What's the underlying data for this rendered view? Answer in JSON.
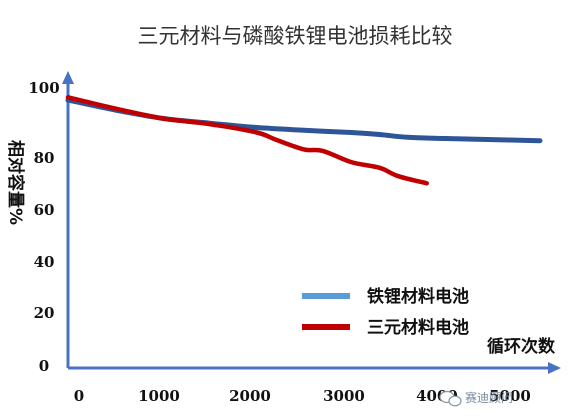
{
  "chart_data": {
    "type": "line",
    "title": "三元材料与磷酸铁锂电池损耗比较",
    "ylabel": "相对容量%",
    "xlabel": "循环次数",
    "xlim": [
      0,
      5000
    ],
    "ylim": [
      0,
      100
    ],
    "x_ticks": [
      "0",
      "1000",
      "2000",
      "3000",
      "4000",
      "5000"
    ],
    "y_ticks": [
      "0",
      "20",
      "40",
      "60",
      "80",
      "100"
    ],
    "legend_position": "lower-right",
    "grid": false,
    "series": [
      {
        "name": "铁锂材料电池",
        "color": "#2e5597",
        "legend_color": "#5b9bd5",
        "points": [
          [
            0,
            95
          ],
          [
            500,
            91.5
          ],
          [
            1000,
            88.5
          ],
          [
            1500,
            86.8
          ],
          [
            2000,
            85.3
          ],
          [
            2500,
            84.3
          ],
          [
            3000,
            83.5
          ],
          [
            3300,
            82.8
          ],
          [
            3600,
            81.8
          ],
          [
            4000,
            81.4
          ],
          [
            4500,
            81.0
          ],
          [
            5000,
            80.6
          ]
        ]
      },
      {
        "name": "三元材料电池",
        "color": "#c00000",
        "legend_color": "#c00000",
        "points": [
          [
            0,
            96
          ],
          [
            500,
            92
          ],
          [
            1000,
            88.5
          ],
          [
            1500,
            86.5
          ],
          [
            2000,
            83.5
          ],
          [
            2200,
            81.0
          ],
          [
            2500,
            77.5
          ],
          [
            2700,
            77.0
          ],
          [
            3000,
            73.0
          ],
          [
            3300,
            71.0
          ],
          [
            3500,
            68.0
          ],
          [
            3800,
            65.5
          ]
        ]
      }
    ]
  },
  "watermark": {
    "text": "赛迪顾问",
    "icon": "wechat-icon"
  }
}
